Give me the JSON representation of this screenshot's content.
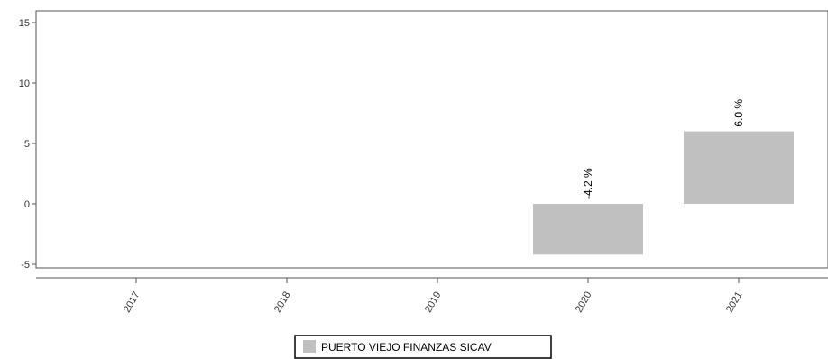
{
  "chart_data": {
    "type": "bar",
    "title": "",
    "xlabel": "",
    "ylabel": "",
    "categories": [
      "2017",
      "2018",
      "2019",
      "2020",
      "2021"
    ],
    "series": [
      {
        "name": "PUERTO VIEJO FINANZAS SICAV",
        "values": [
          null,
          null,
          null,
          -4.2,
          6.0
        ],
        "data_labels": [
          "",
          "",
          "",
          "-4.2 %",
          "6.0 %"
        ],
        "color": "#c0c0c0"
      }
    ],
    "ylim": [
      -5,
      15
    ],
    "yticks": [
      -5,
      0,
      5,
      10,
      15
    ],
    "grid": false,
    "legend_position": "bottom-center"
  },
  "colors": {
    "bar": "#c0c0c0",
    "axis": "#555555",
    "legend_border": "#000000"
  }
}
